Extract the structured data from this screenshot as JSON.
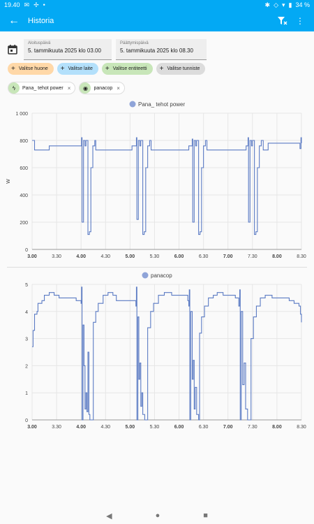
{
  "status_bar": {
    "time": "19.40",
    "battery": "34 %"
  },
  "app_bar": {
    "title": "Historia"
  },
  "date_range": {
    "start_label": "Aloituspäivä",
    "start_value": "5. tammikuuta 2025 klo 03.00",
    "end_label": "Päättymispäivä",
    "end_value": "5. tammikuuta 2025 klo 08.30"
  },
  "target_chips": [
    {
      "label": "Valitse huone"
    },
    {
      "label": "Valitse laite"
    },
    {
      "label": "Valitse entiteetti"
    },
    {
      "label": "Valitse tunniste"
    }
  ],
  "selected": [
    {
      "label": "Pana_ tehot power",
      "icon": "lightning-icon"
    },
    {
      "label": "panacop",
      "icon": "eye-icon"
    }
  ],
  "colors": {
    "accent": "#03a9f4",
    "series": "#5b7bc4"
  },
  "chart_data": [
    {
      "type": "line",
      "legend": "Pana_ tehot power",
      "ylabel": "W",
      "ylim": [
        0,
        1000
      ],
      "yticks": [
        "0",
        "200",
        "400",
        "600",
        "800",
        "1 000"
      ],
      "xlim": [
        0,
        5.5
      ],
      "xticks": [
        "3.00",
        "3.30",
        "4.00",
        "4.30",
        "5.00",
        "5.30",
        "6.00",
        "6.30",
        "7.00",
        "7.30",
        "8.00",
        "8.30"
      ],
      "bold_xticks": [
        "3.00",
        "4.00",
        "5.00",
        "6.00",
        "7.00",
        "8.00"
      ],
      "points": [
        [
          0.0,
          800
        ],
        [
          0.03,
          800
        ],
        [
          0.05,
          730
        ],
        [
          0.33,
          730
        ],
        [
          0.35,
          760
        ],
        [
          1.0,
          760
        ],
        [
          1.01,
          820
        ],
        [
          1.02,
          200
        ],
        [
          1.05,
          800
        ],
        [
          1.08,
          760
        ],
        [
          1.1,
          800
        ],
        [
          1.14,
          110
        ],
        [
          1.17,
          130
        ],
        [
          1.2,
          600
        ],
        [
          1.24,
          760
        ],
        [
          1.28,
          800
        ],
        [
          1.3,
          730
        ],
        [
          2.02,
          730
        ],
        [
          2.04,
          760
        ],
        [
          2.12,
          760
        ],
        [
          2.13,
          820
        ],
        [
          2.14,
          220
        ],
        [
          2.17,
          800
        ],
        [
          2.2,
          760
        ],
        [
          2.22,
          800
        ],
        [
          2.26,
          110
        ],
        [
          2.29,
          130
        ],
        [
          2.32,
          600
        ],
        [
          2.36,
          760
        ],
        [
          2.4,
          800
        ],
        [
          2.43,
          730
        ],
        [
          3.18,
          730
        ],
        [
          3.2,
          760
        ],
        [
          3.26,
          760
        ],
        [
          3.27,
          810
        ],
        [
          3.28,
          200
        ],
        [
          3.31,
          800
        ],
        [
          3.34,
          760
        ],
        [
          3.36,
          800
        ],
        [
          3.4,
          110
        ],
        [
          3.43,
          130
        ],
        [
          3.46,
          600
        ],
        [
          3.5,
          760
        ],
        [
          3.54,
          800
        ],
        [
          3.57,
          730
        ],
        [
          4.35,
          730
        ],
        [
          4.37,
          760
        ],
        [
          4.4,
          760
        ],
        [
          4.41,
          820
        ],
        [
          4.42,
          200
        ],
        [
          4.45,
          800
        ],
        [
          4.48,
          760
        ],
        [
          4.5,
          800
        ],
        [
          4.54,
          110
        ],
        [
          4.57,
          130
        ],
        [
          4.6,
          600
        ],
        [
          4.64,
          760
        ],
        [
          4.68,
          800
        ],
        [
          4.72,
          730
        ],
        [
          4.8,
          730
        ],
        [
          4.82,
          780
        ],
        [
          5.45,
          780
        ],
        [
          5.47,
          740
        ],
        [
          5.49,
          820
        ],
        [
          5.5,
          780
        ]
      ]
    },
    {
      "type": "line",
      "legend": "panacop",
      "ylim": [
        0,
        5
      ],
      "yticks": [
        "0",
        "1",
        "2",
        "3",
        "4",
        "5"
      ],
      "xlim": [
        0,
        5.5
      ],
      "xticks": [
        "3.00",
        "3.30",
        "4.00",
        "4.30",
        "5.00",
        "5.30",
        "6.00",
        "6.30",
        "7.00",
        "7.30",
        "8.00",
        "8.30"
      ],
      "bold_xticks": [
        "3.00",
        "4.00",
        "5.00",
        "6.00",
        "7.00",
        "8.00"
      ],
      "points": [
        [
          0.0,
          2.7
        ],
        [
          0.02,
          3.3
        ],
        [
          0.05,
          3.9
        ],
        [
          0.1,
          4.0
        ],
        [
          0.12,
          4.3
        ],
        [
          0.2,
          4.4
        ],
        [
          0.25,
          4.6
        ],
        [
          0.3,
          4.6
        ],
        [
          0.35,
          4.7
        ],
        [
          0.45,
          4.6
        ],
        [
          0.55,
          4.5
        ],
        [
          0.8,
          4.5
        ],
        [
          0.9,
          4.4
        ],
        [
          1.0,
          4.3
        ],
        [
          1.01,
          4.9
        ],
        [
          1.02,
          0.0
        ],
        [
          1.04,
          3.5
        ],
        [
          1.06,
          2.0
        ],
        [
          1.08,
          0.4
        ],
        [
          1.1,
          1.0
        ],
        [
          1.12,
          0.3
        ],
        [
          1.14,
          2.5
        ],
        [
          1.16,
          0.2
        ],
        [
          1.18,
          0.0
        ],
        [
          1.22,
          0.0
        ],
        [
          1.25,
          3.6
        ],
        [
          1.3,
          4.0
        ],
        [
          1.35,
          4.3
        ],
        [
          1.45,
          4.6
        ],
        [
          1.55,
          4.7
        ],
        [
          1.65,
          4.6
        ],
        [
          1.72,
          4.4
        ],
        [
          2.08,
          4.4
        ],
        [
          2.12,
          4.2
        ],
        [
          2.13,
          4.9
        ],
        [
          2.14,
          0.0
        ],
        [
          2.16,
          3.8
        ],
        [
          2.18,
          1.5
        ],
        [
          2.2,
          2.1
        ],
        [
          2.22,
          0.5
        ],
        [
          2.24,
          1.0
        ],
        [
          2.26,
          0.2
        ],
        [
          2.3,
          0.0
        ],
        [
          2.33,
          0.0
        ],
        [
          2.36,
          3.4
        ],
        [
          2.42,
          4.0
        ],
        [
          2.48,
          4.3
        ],
        [
          2.58,
          4.6
        ],
        [
          2.7,
          4.7
        ],
        [
          2.85,
          4.6
        ],
        [
          3.1,
          4.6
        ],
        [
          3.18,
          4.4
        ],
        [
          3.2,
          4.2
        ],
        [
          3.21,
          4.8
        ],
        [
          3.22,
          0.0
        ],
        [
          3.24,
          4.0
        ],
        [
          3.27,
          1.5
        ],
        [
          3.29,
          2.2
        ],
        [
          3.31,
          0.4
        ],
        [
          3.33,
          1.2
        ],
        [
          3.36,
          0.2
        ],
        [
          3.4,
          0.0
        ],
        [
          3.42,
          3.2
        ],
        [
          3.46,
          3.8
        ],
        [
          3.52,
          4.2
        ],
        [
          3.6,
          4.5
        ],
        [
          3.7,
          4.6
        ],
        [
          3.78,
          4.7
        ],
        [
          3.9,
          4.6
        ],
        [
          4.15,
          4.5
        ],
        [
          4.22,
          4.2
        ],
        [
          4.24,
          4.8
        ],
        [
          4.25,
          0.0
        ],
        [
          4.27,
          4.0
        ],
        [
          4.3,
          1.3
        ],
        [
          4.33,
          2.1
        ],
        [
          4.36,
          0.4
        ],
        [
          4.4,
          0.0
        ],
        [
          4.44,
          0.0
        ],
        [
          4.47,
          3.0
        ],
        [
          4.52,
          3.8
        ],
        [
          4.58,
          4.2
        ],
        [
          4.66,
          4.5
        ],
        [
          4.76,
          4.6
        ],
        [
          4.9,
          4.5
        ],
        [
          5.15,
          4.5
        ],
        [
          5.25,
          4.4
        ],
        [
          5.35,
          4.3
        ],
        [
          5.45,
          4.2
        ],
        [
          5.48,
          3.9
        ],
        [
          5.5,
          3.6
        ]
      ]
    }
  ]
}
